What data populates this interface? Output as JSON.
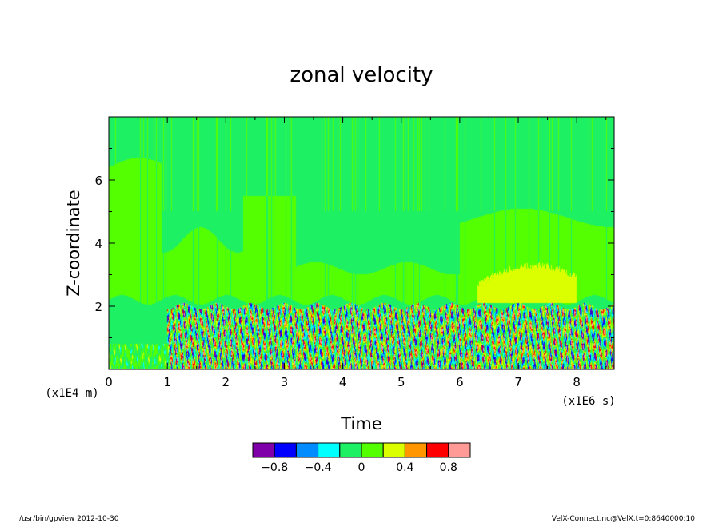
{
  "chart_data": {
    "type": "heatmap",
    "title": "zonal velocity",
    "xlabel": "Time",
    "ylabel": "Z-coordinate",
    "x_units": "(x1E6 s)",
    "y_units": "(x1E4 m)",
    "xlim": [
      0,
      8.64
    ],
    "ylim": [
      0,
      8
    ],
    "x_ticks": [
      {
        "value": 0,
        "label": "0"
      },
      {
        "value": 1,
        "label": "1"
      },
      {
        "value": 2,
        "label": "2"
      },
      {
        "value": 3,
        "label": "3"
      },
      {
        "value": 4,
        "label": "4"
      },
      {
        "value": 5,
        "label": "5"
      },
      {
        "value": 6,
        "label": "6"
      },
      {
        "value": 7,
        "label": "7"
      },
      {
        "value": 8,
        "label": "8"
      }
    ],
    "y_ticks": [
      {
        "value": 2,
        "label": "2"
      },
      {
        "value": 4,
        "label": "4"
      },
      {
        "value": 6,
        "label": "6"
      }
    ],
    "colorbar": {
      "levels": [
        -1.0,
        -0.8,
        -0.6,
        -0.4,
        -0.2,
        0,
        0.2,
        0.4,
        0.6,
        0.8,
        1.0
      ],
      "colors": [
        "#7f00a8",
        "#0000ff",
        "#008cff",
        "#00ffff",
        "#1ef064",
        "#53ff00",
        "#dcff00",
        "#ff9600",
        "#ff0000",
        "#ff9a96"
      ],
      "tick_labels": [
        {
          "value": -0.8,
          "label": "−0.8"
        },
        {
          "value": -0.4,
          "label": "−0.4"
        },
        {
          "value": 0,
          "label": "0"
        },
        {
          "value": 0.4,
          "label": "0.4"
        },
        {
          "value": 0.8,
          "label": "0.8"
        }
      ]
    },
    "field_summary": {
      "upper_layer": "values mostly between -0.2 and 0.2 above z = 2 (x1E4 m)",
      "positive_patch": "values 0.2 to 0.4 near z = 2.2-3.4, t = 6.4-8.0 (x1E6 s)",
      "turbulent_layer": "oscillating values from -1.0 to 1.0 below z = 2 after t = 1 (x1E6 s)"
    }
  },
  "footer": {
    "left": "/usr/bin/gpview   2012-10-30",
    "right": "VelX-Connect.nc@VelX,t=0:8640000:10"
  }
}
